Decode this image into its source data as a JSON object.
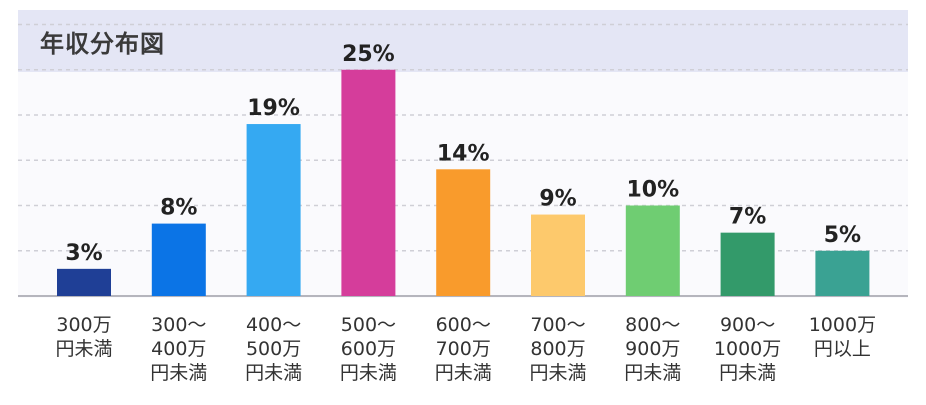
{
  "page": {
    "title": "年収分布図"
  },
  "chart_data": {
    "type": "bar",
    "title": "年収分布図",
    "categories": [
      [
        "300万",
        "円未満"
      ],
      [
        "300～",
        "400万",
        "円未満"
      ],
      [
        "400～",
        "500万",
        "円未満"
      ],
      [
        "500～",
        "600万",
        "円未満"
      ],
      [
        "600～",
        "700万",
        "円未満"
      ],
      [
        "700～",
        "800万",
        "円未満"
      ],
      [
        "800～",
        "900万",
        "円未満"
      ],
      [
        "900～",
        "1000万",
        "円未満"
      ],
      [
        "1000万",
        "円以上"
      ]
    ],
    "values": [
      3,
      8,
      19,
      25,
      14,
      9,
      10,
      7,
      5
    ],
    "value_labels": [
      "3%",
      "8%",
      "19%",
      "25%",
      "14%",
      "9%",
      "10%",
      "7%",
      "5%"
    ],
    "colors": [
      "#1f3f96",
      "#0b74e6",
      "#35a9f2",
      "#d53d9b",
      "#f99b2c",
      "#fdc96c",
      "#6fcd72",
      "#339a6a",
      "#3aa293"
    ],
    "ylim": [
      0,
      30
    ],
    "grid": true,
    "xlabel": "",
    "ylabel": ""
  }
}
